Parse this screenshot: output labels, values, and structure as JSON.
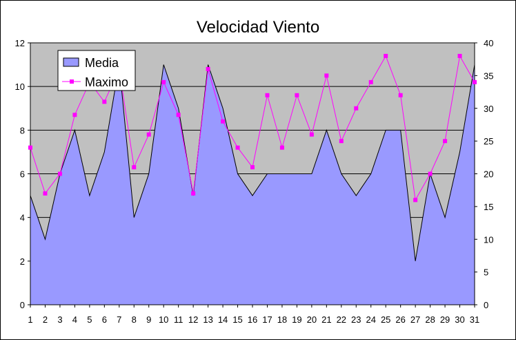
{
  "chart_data": {
    "type": "area",
    "title": "Velocidad Viento",
    "xlabel": "",
    "ylabel": "",
    "categories": [
      "1",
      "2",
      "3",
      "4",
      "5",
      "6",
      "7",
      "8",
      "9",
      "10",
      "11",
      "12",
      "13",
      "14",
      "15",
      "16",
      "17",
      "18",
      "19",
      "20",
      "21",
      "22",
      "23",
      "24",
      "25",
      "26",
      "27",
      "28",
      "29",
      "30",
      "31"
    ],
    "series": [
      {
        "name": "Media",
        "type": "area",
        "axis": "left",
        "color": "#9999ff",
        "values": [
          5,
          3,
          6,
          8,
          5,
          7,
          11,
          4,
          6,
          11,
          9,
          5,
          11,
          9,
          6,
          5,
          6,
          6,
          6,
          6,
          8,
          6,
          5,
          6,
          8,
          8,
          2,
          6,
          4,
          7,
          11
        ]
      },
      {
        "name": "Maximo",
        "type": "line",
        "axis": "right",
        "color": "#ff00ff",
        "values": [
          24,
          17,
          20,
          29,
          34,
          31,
          36,
          21,
          26,
          34,
          29,
          17,
          36,
          28,
          24,
          21,
          32,
          24,
          32,
          26,
          35,
          25,
          30,
          34,
          38,
          32,
          16,
          20,
          25,
          38,
          34
        ]
      }
    ],
    "ylim": [
      0,
      12
    ],
    "yticks": [
      "0",
      "2",
      "4",
      "6",
      "8",
      "10",
      "12"
    ],
    "y2lim": [
      0,
      40
    ],
    "y2ticks": [
      "0",
      "5",
      "10",
      "15",
      "20",
      "25",
      "30",
      "35",
      "40"
    ],
    "plot_background": "#c0c0c0",
    "grid": true,
    "legend": "top-left"
  }
}
